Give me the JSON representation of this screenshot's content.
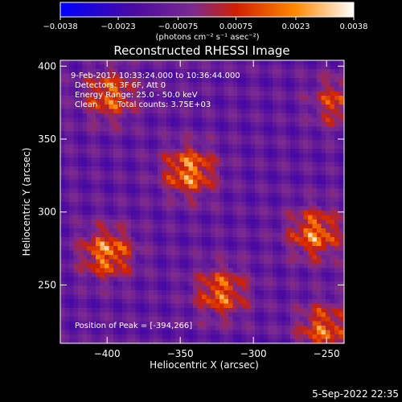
{
  "chart_data": {
    "type": "heatmap",
    "title": "Reconstructed RHESSI Image",
    "xlabel": "Heliocentric X (arcsec)",
    "ylabel": "Heliocentric Y (arcsec)",
    "xlim": [
      -432,
      -238
    ],
    "ylim": [
      210,
      404
    ],
    "xticks": [
      -400,
      -350,
      -300,
      -250
    ],
    "xtick_labels": [
      "−400",
      "−350",
      "−300",
      "−250"
    ],
    "yticks": [
      250,
      300,
      350,
      400
    ],
    "ytick_labels": [
      "250",
      "300",
      "350",
      "400"
    ],
    "colorbar": {
      "range": [
        -0.0038,
        0.0038
      ],
      "ticks": [
        -0.0038,
        -0.0023,
        -0.00075,
        0.00075,
        0.0023,
        0.0038
      ],
      "tick_labels": [
        "−0.0038",
        "−0.0023",
        "−0.00075",
        "0.00075",
        "0.0023",
        "0.0038"
      ],
      "unit_label": "(photons cm⁻² s⁻¹ asec⁻²)",
      "colors": [
        "#0000ff",
        "#4b0aa0",
        "#7a2a90",
        "#d02000",
        "#ff8800",
        "#ffffff"
      ]
    },
    "peak_sources": [
      {
        "x": -344,
        "y": 328,
        "value": 0.0036
      },
      {
        "x": -400,
        "y": 272,
        "value": 0.0035
      },
      {
        "x": -258,
        "y": 285,
        "value": 0.0034
      },
      {
        "x": -398,
        "y": 380,
        "value": 0.003
      },
      {
        "x": -322,
        "y": 245,
        "value": 0.0031
      },
      {
        "x": -252,
        "y": 220,
        "value": 0.003
      },
      {
        "x": -242,
        "y": 375,
        "value": 0.0025
      }
    ],
    "grid": false
  },
  "annotations": {
    "time_range": "9-Feb-2017 10:33:24.000 to 10:36:44.000",
    "detectors": "Detectors: 3F 6F, Att 0",
    "energy": "Energy Range: 25.0 - 50.0 keV",
    "algorithm": "Clean",
    "counts": "Total counts: 3.75E+03",
    "peak": "Position of Peak = [-394,266]"
  },
  "timestamp": "5-Sep-2022 22:35"
}
